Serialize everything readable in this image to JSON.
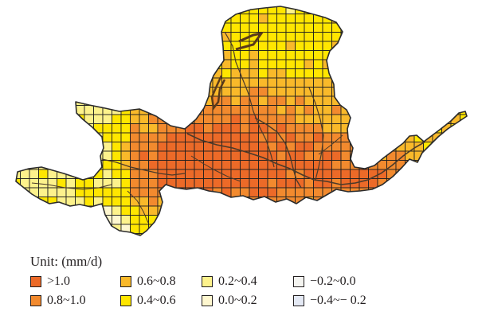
{
  "legend": {
    "title": "Unit: (mm/d)",
    "items": [
      {
        "label": ">1.0",
        "color": "#ec6a28"
      },
      {
        "label": "0.8~1.0",
        "color": "#f28a2e"
      },
      {
        "label": "0.6~0.8",
        "color": "#f9b92a"
      },
      {
        "label": "0.4~0.6",
        "color": "#ffe600"
      },
      {
        "label": "0.2~0.4",
        "color": "#fdf28c"
      },
      {
        "label": "0.0~0.2",
        "color": "#fef7cf"
      },
      {
        "label": "−0.2~0.0",
        "color": "#f4f4f0"
      },
      {
        "label": "−0.4~− 0.2",
        "color": "#e4e9f4"
      }
    ]
  }
}
